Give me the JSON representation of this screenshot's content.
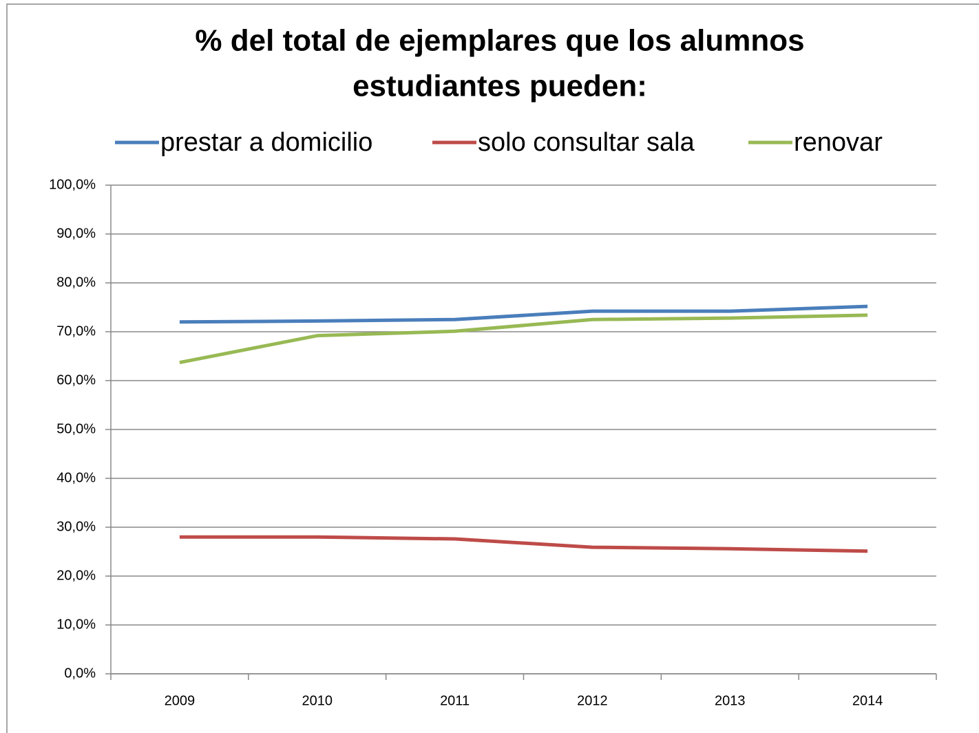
{
  "chart_data": {
    "type": "line",
    "title": [
      "% del total de ejemplares que los alumnos",
      "estudiantes pueden:"
    ],
    "categories": [
      "2009",
      "2010",
      "2011",
      "2012",
      "2013",
      "2014"
    ],
    "series": [
      {
        "name": "prestar a domicilio",
        "color": "#4a7ebb",
        "values": [
          72.0,
          72.2,
          72.5,
          74.2,
          74.2,
          75.2
        ]
      },
      {
        "name": "solo consultar sala",
        "color": "#be4b48",
        "values": [
          28.0,
          28.0,
          27.6,
          25.9,
          25.6,
          25.1
        ]
      },
      {
        "name": "renovar",
        "color": "#98b954",
        "values": [
          63.7,
          69.2,
          70.1,
          72.5,
          72.8,
          73.4
        ]
      }
    ],
    "ylim": [
      0,
      100
    ],
    "yticks": [
      {
        "value": 0,
        "label": "0,0%"
      },
      {
        "value": 10,
        "label": "10,0%"
      },
      {
        "value": 20,
        "label": "20,0%"
      },
      {
        "value": 30,
        "label": "30,0%"
      },
      {
        "value": 40,
        "label": "40,0%"
      },
      {
        "value": 50,
        "label": "50,0%"
      },
      {
        "value": 60,
        "label": "60,0%"
      },
      {
        "value": 70,
        "label": "70,0%"
      },
      {
        "value": 80,
        "label": "80,0%"
      },
      {
        "value": 90,
        "label": "90,0%"
      },
      {
        "value": 100,
        "label": "100,0%"
      }
    ],
    "grid": true,
    "legend": "top"
  }
}
